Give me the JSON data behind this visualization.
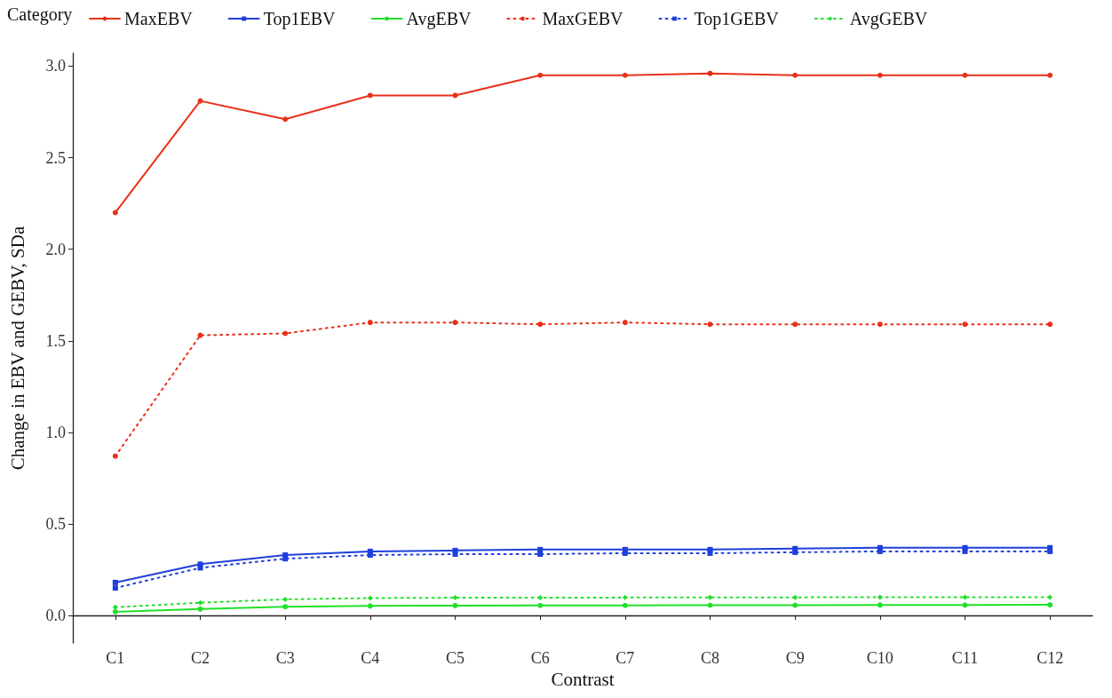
{
  "chart_data": {
    "type": "line",
    "xlabel": "Contrast",
    "ylabel": "Change in EBV and GEBV, SDa",
    "legend_title": "Category",
    "legend": "top left",
    "grid": false,
    "categories": [
      "C1",
      "C2",
      "C3",
      "C4",
      "C5",
      "C6",
      "C7",
      "C8",
      "C9",
      "C10",
      "C11",
      "C12"
    ],
    "ylim": [
      -0.15,
      3.07
    ],
    "yticks": [
      {
        "value": 0,
        "label": "0.0"
      },
      {
        "value": 0.5,
        "label": "0.5"
      },
      {
        "value": 1,
        "label": "1.0"
      },
      {
        "value": 1.5,
        "label": "1.5"
      },
      {
        "value": 2,
        "label": "2.0"
      },
      {
        "value": 2.5,
        "label": "2.5"
      },
      {
        "value": 3,
        "label": "3.0"
      }
    ],
    "series": [
      {
        "name": "MaxEBV",
        "color": "#e8311a",
        "marker": "circle",
        "line_style": "solid",
        "values": [
          2.2,
          2.81,
          2.71,
          2.84,
          2.84,
          2.95,
          2.95,
          2.96,
          2.95,
          2.95,
          2.95,
          2.95
        ]
      },
      {
        "name": "Top1EBV",
        "color": "#1f3fdc",
        "marker": "square",
        "line_style": "solid",
        "values": [
          0.18,
          0.28,
          0.33,
          0.35,
          0.355,
          0.36,
          0.36,
          0.36,
          0.365,
          0.37,
          0.37,
          0.37
        ]
      },
      {
        "name": "AvgEBV",
        "color": "#22e02a",
        "marker": "circle",
        "line_style": "solid",
        "values": [
          0.02,
          0.035,
          0.048,
          0.052,
          0.054,
          0.055,
          0.055,
          0.056,
          0.056,
          0.057,
          0.057,
          0.058
        ]
      },
      {
        "name": "MaxGEBV",
        "color": "#e8311a",
        "marker": "circle",
        "line_style": "dotted",
        "values": [
          0.87,
          1.53,
          1.54,
          1.6,
          1.6,
          1.59,
          1.6,
          1.59,
          1.59,
          1.59,
          1.59,
          1.59
        ]
      },
      {
        "name": "Top1GEBV",
        "color": "#1f3fdc",
        "marker": "square",
        "line_style": "dotted",
        "values": [
          0.15,
          0.26,
          0.31,
          0.33,
          0.335,
          0.335,
          0.34,
          0.34,
          0.345,
          0.35,
          0.35,
          0.35
        ]
      },
      {
        "name": "AvgGEBV",
        "color": "#22e02a",
        "marker": "diamond",
        "line_style": "dotted",
        "values": [
          0.045,
          0.07,
          0.088,
          0.095,
          0.097,
          0.097,
          0.098,
          0.098,
          0.099,
          0.1,
          0.1,
          0.1
        ]
      }
    ]
  }
}
